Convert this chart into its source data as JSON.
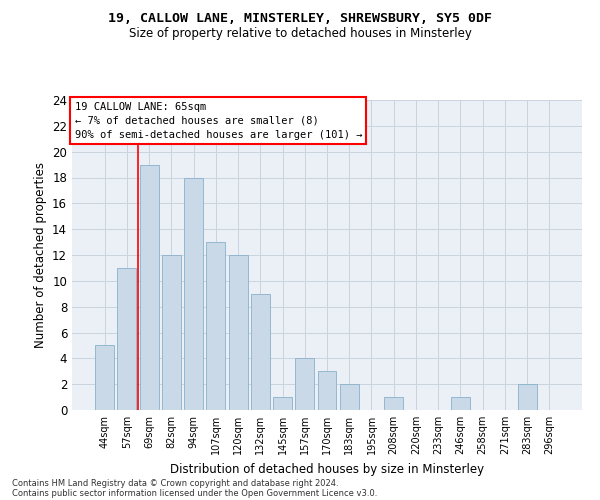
{
  "title1": "19, CALLOW LANE, MINSTERLEY, SHREWSBURY, SY5 0DF",
  "title2": "Size of property relative to detached houses in Minsterley",
  "xlabel": "Distribution of detached houses by size in Minsterley",
  "ylabel": "Number of detached properties",
  "bar_color": "#c9d9e8",
  "bar_edgecolor": "#8ab0cc",
  "grid_color": "#c8d4de",
  "background_color": "#eaf0f6",
  "categories": [
    "44sqm",
    "57sqm",
    "69sqm",
    "82sqm",
    "94sqm",
    "107sqm",
    "120sqm",
    "132sqm",
    "145sqm",
    "157sqm",
    "170sqm",
    "183sqm",
    "195sqm",
    "208sqm",
    "220sqm",
    "233sqm",
    "246sqm",
    "258sqm",
    "271sqm",
    "283sqm",
    "296sqm"
  ],
  "values": [
    5,
    11,
    19,
    12,
    18,
    13,
    12,
    9,
    1,
    4,
    3,
    2,
    0,
    1,
    0,
    0,
    1,
    0,
    0,
    2,
    0
  ],
  "ylim": [
    0,
    24
  ],
  "yticks": [
    0,
    2,
    4,
    6,
    8,
    10,
    12,
    14,
    16,
    18,
    20,
    22,
    24
  ],
  "property_label": "19 CALLOW LANE: 65sqm",
  "annotation_line1": "← 7% of detached houses are smaller (8)",
  "annotation_line2": "90% of semi-detached houses are larger (101) →",
  "annotation_box_color": "white",
  "annotation_box_edgecolor": "red",
  "vline_color": "red",
  "vline_x_index": 1.5,
  "footer1": "Contains HM Land Registry data © Crown copyright and database right 2024.",
  "footer2": "Contains public sector information licensed under the Open Government Licence v3.0."
}
